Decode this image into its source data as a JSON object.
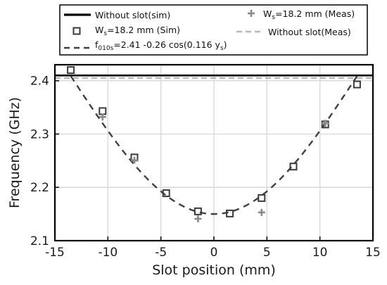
{
  "chart_data": {
    "type": "scatter",
    "xlabel": "Slot position (mm)",
    "ylabel": "Frequency (GHz)",
    "xlim": [
      -15,
      15
    ],
    "ylim": [
      2.1,
      2.43
    ],
    "xticks": [
      "-15",
      "-10",
      "-5",
      "0",
      "5",
      "10",
      "15"
    ],
    "yticks": [
      "2.1",
      "2.2",
      "2.3",
      "2.4"
    ],
    "grid": true,
    "legend_position": "above plot, two columns",
    "legend": {
      "without_slot_sim": "Without slot(sim)",
      "sim_prefix": "W",
      "sim_sub": "s",
      "sim_suffix": "=18.2 mm (Sim)",
      "meas_prefix": "W",
      "meas_sub": "s",
      "meas_suffix": "=18.2 mm (Meas)",
      "without_slot_meas": "Without slot(Meas)",
      "fit_prefix": "f",
      "fit_sub": "010s",
      "fit_mid": "=2.41 -0.26 cos(0.116 y",
      "fit_sub2": "s",
      "fit_end": ")"
    },
    "series": [
      {
        "name": "Without slot(sim)",
        "style": "solid-line",
        "color": "#000000",
        "y": 2.41
      },
      {
        "name": "Without slot(Meas)",
        "style": "dashed-line",
        "color": "#b8b8b8",
        "y": 2.405
      },
      {
        "name": "Ws=18.2 mm (Sim)",
        "style": "square-marker",
        "color": "#3a3a3a",
        "x": [
          -13.5,
          -10.5,
          -7.5,
          -4.5,
          -1.5,
          1.5,
          4.5,
          7.5,
          10.5,
          13.5
        ],
        "y": [
          2.42,
          2.343,
          2.256,
          2.189,
          2.155,
          2.151,
          2.18,
          2.239,
          2.318,
          2.393
        ]
      },
      {
        "name": "Ws=18.2 mm (Meas)",
        "style": "plus-marker",
        "color": "#8a8a8a",
        "x": [
          -10.5,
          -7.5,
          -1.5,
          4.5,
          10.5
        ],
        "y": [
          2.332,
          2.251,
          2.141,
          2.153,
          2.32
        ]
      },
      {
        "name": "f010s=2.41 -0.26 cos(0.116 ys)",
        "style": "dashed-curve",
        "color": "#404040",
        "formula": {
          "a": 2.41,
          "b": -0.26,
          "k": 0.116
        },
        "x_range": [
          -13.5,
          13.5
        ]
      }
    ]
  }
}
